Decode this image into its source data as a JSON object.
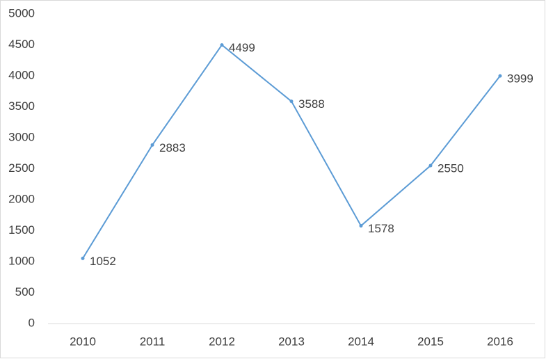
{
  "chart_data": {
    "type": "line",
    "categories": [
      "2010",
      "2011",
      "2012",
      "2013",
      "2014",
      "2015",
      "2016"
    ],
    "series": [
      {
        "color": "#5b9bd5",
        "values": [
          1052,
          2883,
          4499,
          3588,
          1578,
          2550,
          3999
        ]
      }
    ],
    "ylim": [
      0,
      5000
    ],
    "yticks": [
      0,
      500,
      1000,
      1500,
      2000,
      2500,
      3000,
      3500,
      4000,
      4500,
      5000
    ],
    "grid": false,
    "data_labels": true
  }
}
